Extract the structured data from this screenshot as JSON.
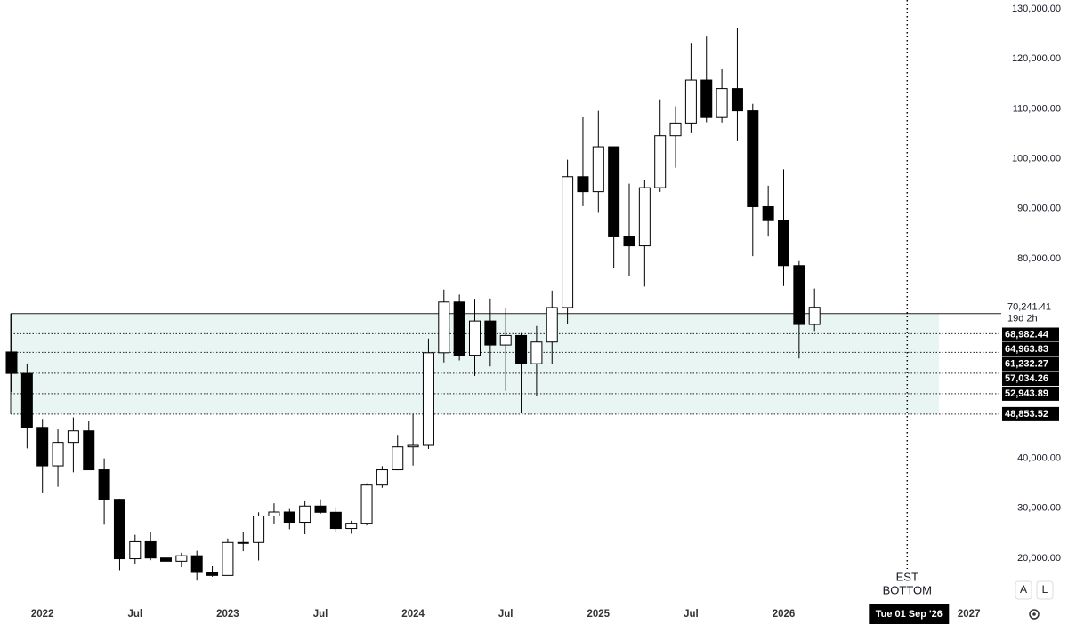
{
  "chart_data": {
    "type": "candlestick",
    "x": [
      "2021-11",
      "2021-12",
      "2022-01",
      "2022-02",
      "2022-03",
      "2022-04",
      "2022-05",
      "2022-06",
      "2022-07",
      "2022-08",
      "2022-09",
      "2022-10",
      "2022-11",
      "2022-12",
      "2023-01",
      "2023-02",
      "2023-03",
      "2023-04",
      "2023-05",
      "2023-06",
      "2023-07",
      "2023-08",
      "2023-09",
      "2023-10",
      "2023-11",
      "2023-12",
      "2024-01",
      "2024-02",
      "2024-03",
      "2024-04",
      "2024-05",
      "2024-06",
      "2024-07",
      "2024-08",
      "2024-09",
      "2024-10",
      "2024-11",
      "2024-12",
      "2025-01",
      "2025-02",
      "2025-03",
      "2025-04",
      "2025-05",
      "2025-06",
      "2025-07",
      "2025-08",
      "2025-09",
      "2025-10",
      "2025-11",
      "2025-12",
      "2026-01",
      "2026-02",
      "2026-03"
    ],
    "open": [
      61300,
      57000,
      46200,
      38500,
      43200,
      45500,
      37700,
      31800,
      19900,
      23300,
      20050,
      19400,
      20500,
      17150,
      16550,
      23150,
      23150,
      28450,
      29250,
      27200,
      30450,
      29200,
      25950,
      27000,
      34650,
      37700,
      42300,
      42600,
      61150,
      71300,
      60650,
      67500,
      62700,
      64600,
      58950,
      63300,
      70200,
      96400,
      93400,
      102400,
      84350,
      82550,
      94200,
      104600,
      107150,
      115750,
      108250,
      114050,
      109600,
      90400,
      87600,
      78600,
      66800
    ],
    "high": [
      69000,
      59000,
      47900,
      45800,
      48200,
      47400,
      40000,
      31900,
      24700,
      25200,
      22800,
      21100,
      21500,
      18400,
      23950,
      25250,
      29200,
      31000,
      29850,
      31400,
      31800,
      30200,
      27500,
      35000,
      38450,
      44700,
      48950,
      64000,
      73800,
      72800,
      71950,
      72000,
      70000,
      65100,
      66500,
      73600,
      99800,
      108300,
      109600,
      102500,
      95000,
      95750,
      111900,
      110500,
      123200,
      124450,
      117900,
      126200,
      111000,
      94600,
      97900,
      79500,
      74000
    ],
    "low": [
      53250,
      42000,
      33000,
      34300,
      37200,
      37700,
      26700,
      17600,
      18800,
      19600,
      18150,
      18200,
      15500,
      16300,
      16500,
      21400,
      19550,
      26950,
      25800,
      24800,
      28900,
      25200,
      24900,
      26550,
      34100,
      37600,
      38550,
      41900,
      59200,
      59600,
      56500,
      58400,
      53500,
      49000,
      52550,
      58900,
      66800,
      90500,
      89150,
      78200,
      76600,
      74400,
      93350,
      98200,
      105100,
      107300,
      107250,
      103500,
      80500,
      84400,
      74500,
      60000,
      65500
    ],
    "close": [
      57000,
      46200,
      38500,
      43200,
      45500,
      37700,
      31800,
      19900,
      23300,
      20050,
      19400,
      20500,
      17150,
      16550,
      23150,
      23150,
      28450,
      29250,
      27200,
      30450,
      29200,
      25950,
      27000,
      34650,
      37700,
      42300,
      42600,
      61150,
      71300,
      60650,
      67500,
      62700,
      64600,
      58950,
      63300,
      70200,
      96400,
      93400,
      102400,
      84350,
      82550,
      94200,
      104600,
      107150,
      115750,
      108250,
      114050,
      109600,
      90400,
      87600,
      78600,
      66800,
      70241.41
    ],
    "up_color": "#ffffff",
    "down_color": "#000000",
    "ylim": [
      10740,
      131780
    ],
    "yticks": [
      {
        "value": 20000,
        "label": "20,000.00"
      },
      {
        "value": 30000,
        "label": "30,000.00"
      },
      {
        "value": 40000,
        "label": "40,000.00"
      },
      {
        "value": 80000,
        "label": "80,000.00"
      },
      {
        "value": 90000,
        "label": "90,000.00"
      },
      {
        "value": 100000,
        "label": "100,000.00"
      },
      {
        "value": 110000,
        "label": "110,000.00"
      },
      {
        "value": 120000,
        "label": "120,000.00"
      },
      {
        "value": 130000,
        "label": "130,000.00"
      }
    ],
    "xticks": [
      {
        "value": "2022-01",
        "label": "2022"
      },
      {
        "value": "2022-07",
        "label": "Jul"
      },
      {
        "value": "2023-01",
        "label": "2023"
      },
      {
        "value": "2023-07",
        "label": "Jul"
      },
      {
        "value": "2024-01",
        "label": "2024"
      },
      {
        "value": "2024-07",
        "label": "Jul"
      },
      {
        "value": "2025-01",
        "label": "2025"
      },
      {
        "value": "2025-07",
        "label": "Jul"
      },
      {
        "value": "2026-01",
        "label": "2026"
      },
      {
        "value": "2027-01",
        "label": "2027"
      }
    ],
    "levels": [
      {
        "value": 68982.44,
        "label": "68,982.44"
      },
      {
        "value": 64963.83,
        "label": "64,963.83"
      },
      {
        "value": 61232.27,
        "label": "61,232.27"
      },
      {
        "value": 57034.26,
        "label": "57,034.26"
      },
      {
        "value": 52943.89,
        "label": "52,943.89"
      },
      {
        "value": 48853.52,
        "label": "48,853.52"
      }
    ],
    "zone_color": "#e8f5f3",
    "current_price": {
      "value": 70241.41,
      "label": "70,241.41"
    },
    "countdown": "19d 2h",
    "marker": {
      "x": "2026-09",
      "label": "Tue 01 Sep '26",
      "annotation": [
        "EST",
        "BOTTOM"
      ]
    },
    "buttons": [
      "A",
      "L"
    ]
  }
}
